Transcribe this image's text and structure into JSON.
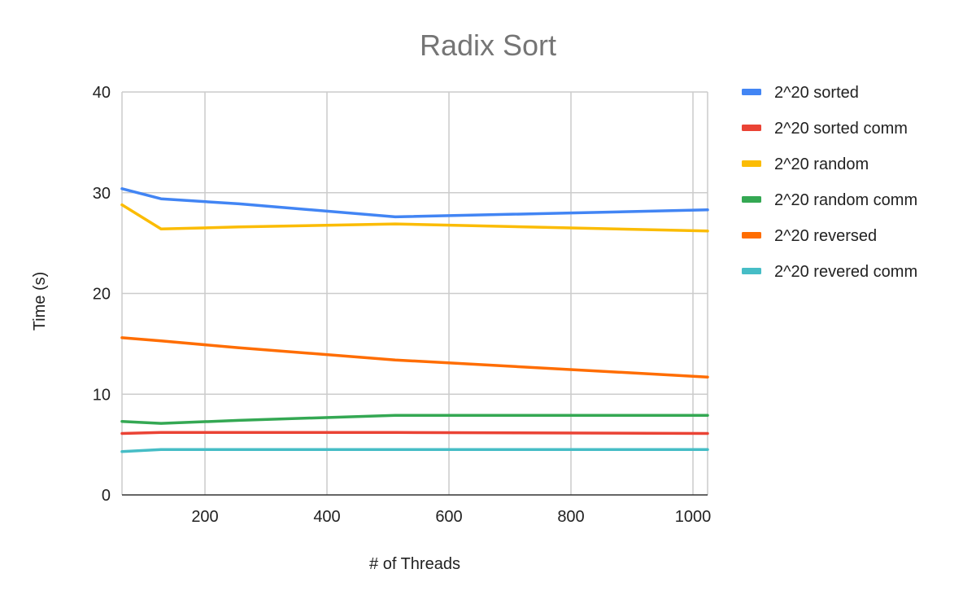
{
  "chart_data": {
    "type": "line",
    "title": "Radix Sort",
    "xlabel": "# of Threads",
    "ylabel": "Time (s)",
    "xlim": [
      64,
      1024
    ],
    "ylim": [
      0,
      40
    ],
    "x_ticks": [
      200,
      400,
      600,
      800,
      1000
    ],
    "y_ticks": [
      0,
      10,
      20,
      30,
      40
    ],
    "grid": true,
    "legend": "right",
    "x": [
      64,
      128,
      256,
      512,
      1024
    ],
    "series": [
      {
        "name": "2^20 sorted",
        "color": "#4285f4",
        "values": [
          30.4,
          29.4,
          28.9,
          27.6,
          28.3
        ]
      },
      {
        "name": "2^20 sorted comm",
        "color": "#ea4335",
        "values": [
          6.1,
          6.2,
          6.2,
          6.2,
          6.1
        ]
      },
      {
        "name": "2^20 random",
        "color": "#fbbc04",
        "values": [
          28.8,
          26.4,
          26.6,
          26.9,
          26.2
        ]
      },
      {
        "name": "2^20 random comm",
        "color": "#34a853",
        "values": [
          7.3,
          7.1,
          7.4,
          7.9,
          7.9
        ]
      },
      {
        "name": "2^20 reversed",
        "color": "#ff6d01",
        "values": [
          15.6,
          15.3,
          14.6,
          13.4,
          11.7
        ]
      },
      {
        "name": "2^20 revered comm",
        "color": "#46bdc6",
        "values": [
          4.3,
          4.5,
          4.5,
          4.5,
          4.5
        ]
      }
    ]
  }
}
